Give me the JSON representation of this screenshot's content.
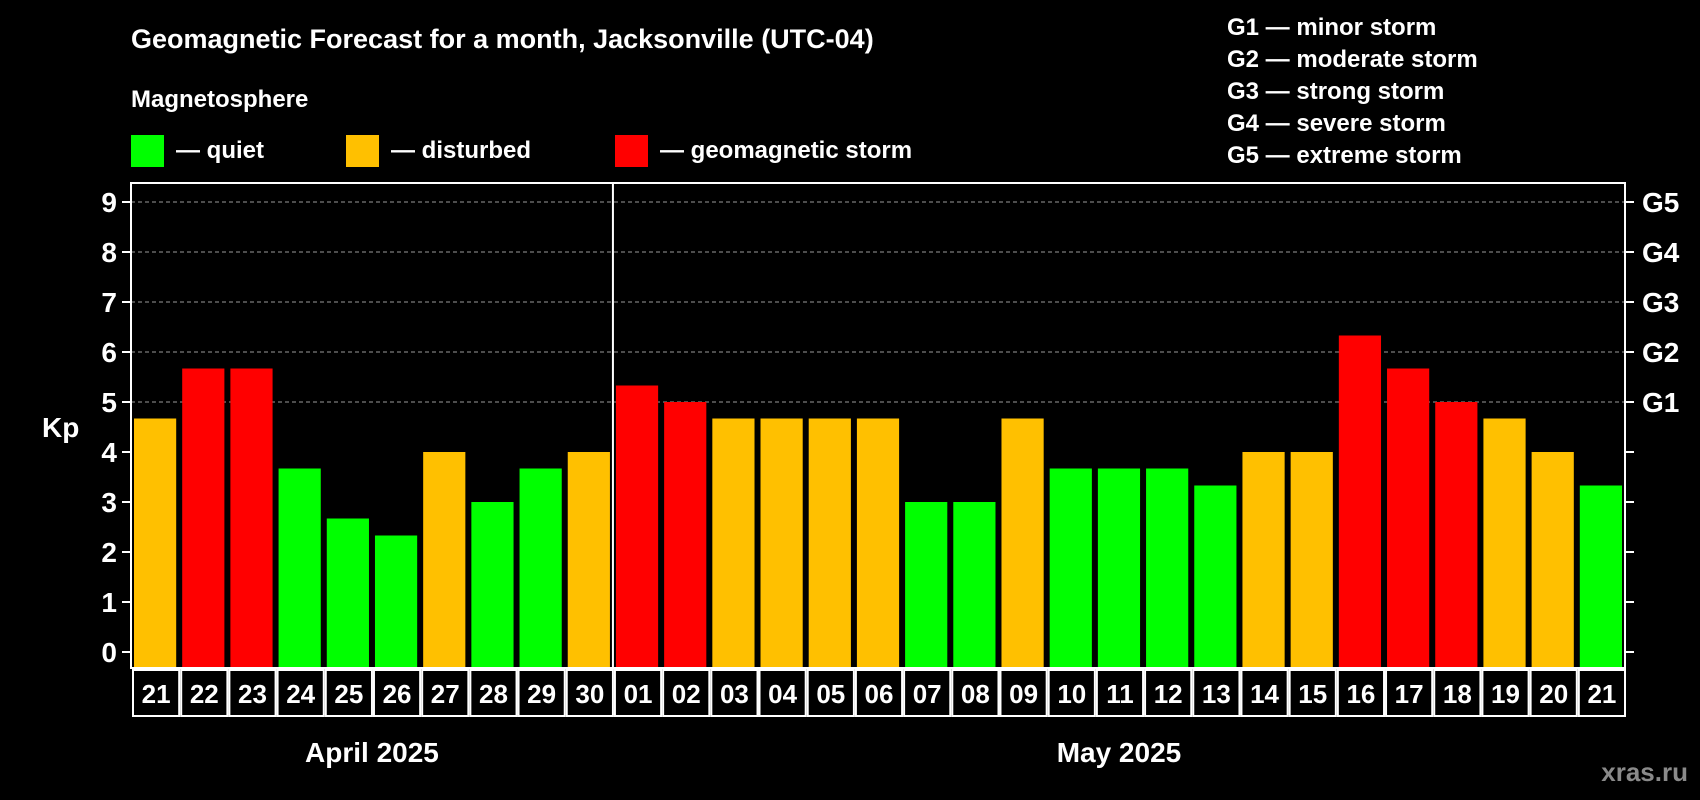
{
  "chart_data": {
    "type": "bar",
    "title": "Geomagnetic Forecast for a month, Jacksonville (UTC-04)",
    "subtitle": "Magnetosphere",
    "ylabel": "Kp",
    "ylim": [
      0,
      9
    ],
    "yticks": [
      "0",
      "1",
      "2",
      "3",
      "4",
      "5",
      "6",
      "7",
      "8",
      "9"
    ],
    "right_ticks": [
      {
        "kp": 5,
        "label": "G1"
      },
      {
        "kp": 6,
        "label": "G2"
      },
      {
        "kp": 7,
        "label": "G3"
      },
      {
        "kp": 8,
        "label": "G4"
      },
      {
        "kp": 9,
        "label": "G5"
      }
    ],
    "grid": true,
    "categories": [
      "21",
      "22",
      "23",
      "24",
      "25",
      "26",
      "27",
      "28",
      "29",
      "30",
      "01",
      "02",
      "03",
      "04",
      "05",
      "06",
      "07",
      "08",
      "09",
      "10",
      "11",
      "12",
      "13",
      "14",
      "15",
      "16",
      "17",
      "18",
      "19",
      "20",
      "21"
    ],
    "values": [
      4.67,
      5.67,
      5.67,
      3.67,
      2.67,
      2.33,
      4,
      3,
      3.67,
      4,
      5.33,
      5,
      4.67,
      4.67,
      4.67,
      4.67,
      3,
      3,
      4.67,
      3.67,
      3.67,
      3.67,
      3.33,
      4,
      4,
      6.33,
      5.67,
      5,
      4.67,
      4,
      3.33
    ],
    "months": [
      {
        "label": "April 2025",
        "count": 10
      },
      {
        "label": "May 2025",
        "count": 21
      }
    ],
    "legend": [
      {
        "label": "— quiet",
        "color": "#00ff00"
      },
      {
        "label": "— disturbed",
        "color": "#ffc000"
      },
      {
        "label": "— geomagnetic storm",
        "color": "#ff0000"
      }
    ],
    "storm_scale": [
      "G1 — minor storm",
      "G2 — moderate storm",
      "G3 — strong storm",
      "G4 — severe storm",
      "G5 — extreme storm"
    ]
  },
  "watermark": "xras.ru"
}
